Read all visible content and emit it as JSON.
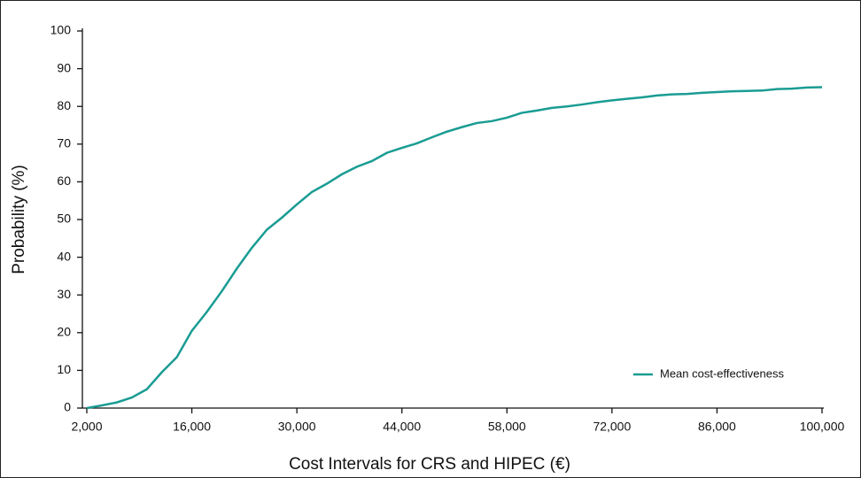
{
  "chart_data": {
    "type": "line",
    "xlabel": "Cost Intervals for CRS and HIPEC (€)",
    "ylabel": "Probability (%)",
    "x": [
      2000,
      4000,
      6000,
      8000,
      10000,
      12000,
      14000,
      16000,
      18000,
      20000,
      22000,
      24000,
      26000,
      28000,
      30000,
      32000,
      34000,
      36000,
      38000,
      40000,
      42000,
      44000,
      46000,
      48000,
      50000,
      52000,
      54000,
      56000,
      58000,
      60000,
      62000,
      64000,
      66000,
      68000,
      70000,
      72000,
      74000,
      76000,
      78000,
      80000,
      82000,
      84000,
      86000,
      88000,
      90000,
      92000,
      94000,
      96000,
      98000,
      100000
    ],
    "series": [
      {
        "name": "Mean cost-effectiveness",
        "color": "#1a9c93",
        "values": [
          0,
          0.7,
          1.5,
          2.8,
          5,
          9.5,
          13.5,
          20.5,
          25.5,
          31,
          37,
          42.5,
          47.3,
          50.5,
          54,
          57.3,
          59.5,
          62,
          64,
          65.5,
          67.7,
          69,
          70.2,
          71.8,
          73.3,
          74.5,
          75.6,
          76.1,
          77,
          78.3,
          78.9,
          79.6,
          80,
          80.5,
          81.1,
          81.6,
          82,
          82.4,
          82.9,
          83.2,
          83.3,
          83.6,
          83.8,
          84,
          84.1,
          84.2,
          84.6,
          84.7,
          85,
          85.1
        ]
      }
    ],
    "xlim": [
      2000,
      100000
    ],
    "xticks": [
      {
        "value": 2000,
        "label": "2,000"
      },
      {
        "value": 16000,
        "label": "16,000"
      },
      {
        "value": 30000,
        "label": "30,000"
      },
      {
        "value": 44000,
        "label": "44,000"
      },
      {
        "value": 58000,
        "label": "58,000"
      },
      {
        "value": 72000,
        "label": "72,000"
      },
      {
        "value": 86000,
        "label": "86,000"
      },
      {
        "value": 100000,
        "label": "100,000"
      }
    ],
    "ylim": [
      0,
      100
    ],
    "yticks": [
      0,
      10,
      20,
      30,
      40,
      50,
      60,
      70,
      80,
      90,
      100
    ],
    "legend": "lower right"
  }
}
